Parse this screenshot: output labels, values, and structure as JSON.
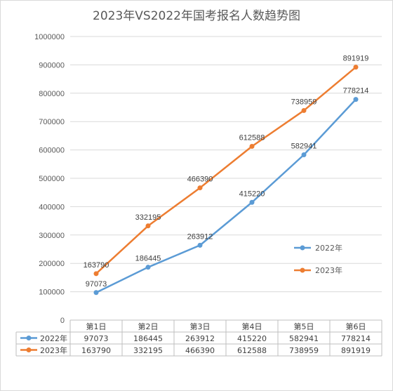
{
  "chart_data": {
    "type": "line",
    "title": "2023年VS2022年国考报名人数趋势图",
    "categories": [
      "第1日",
      "第2日",
      "第3日",
      "第4日",
      "第5日",
      "第6日"
    ],
    "series": [
      {
        "name": "2022年",
        "color": "#5b9bd5",
        "values": [
          97073,
          186445,
          263912,
          415220,
          582941,
          778214
        ]
      },
      {
        "name": "2023年",
        "color": "#ed7d31",
        "values": [
          163790,
          332195,
          466390,
          612588,
          738959,
          891919
        ]
      }
    ],
    "ylim": [
      0,
      1000000
    ],
    "yticks": [
      "0",
      "100000",
      "200000",
      "300000",
      "400000",
      "500000",
      "600000",
      "700000",
      "800000",
      "900000",
      "1000000"
    ],
    "grid": true,
    "legend": "right",
    "data_table": true
  }
}
